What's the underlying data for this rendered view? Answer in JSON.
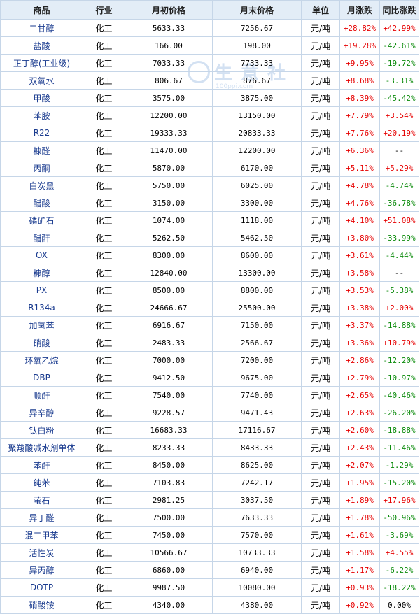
{
  "headers": [
    "商品",
    "行业",
    "月初价格",
    "月末价格",
    "单位",
    "月涨跌",
    "同比涨跌"
  ],
  "watermark": {
    "text": "生意社",
    "url": "100ppi.com"
  },
  "colors": {
    "up": "#e60000",
    "down": "#0a8a0a",
    "header_bg": "#e3edf7",
    "border": "#c6d6e8",
    "name": "#1a3b8f"
  },
  "rows": [
    {
      "name": "二甘醇",
      "industry": "化工",
      "start": "5633.33",
      "end": "7256.67",
      "unit": "元/吨",
      "mom": "+28.82%",
      "yoy": "+42.99%",
      "yoy_dir": "up"
    },
    {
      "name": "盐酸",
      "industry": "化工",
      "start": "166.00",
      "end": "198.00",
      "unit": "元/吨",
      "mom": "+19.28%",
      "yoy": "-42.61%",
      "yoy_dir": "down"
    },
    {
      "name": "正丁醇(工业级)",
      "industry": "化工",
      "start": "7033.33",
      "end": "7733.33",
      "unit": "元/吨",
      "mom": "+9.95%",
      "yoy": "-19.72%",
      "yoy_dir": "down"
    },
    {
      "name": "双氧水",
      "industry": "化工",
      "start": "806.67",
      "end": "876.67",
      "unit": "元/吨",
      "mom": "+8.68%",
      "yoy": "-3.31%",
      "yoy_dir": "down"
    },
    {
      "name": "甲酸",
      "industry": "化工",
      "start": "3575.00",
      "end": "3875.00",
      "unit": "元/吨",
      "mom": "+8.39%",
      "yoy": "-45.42%",
      "yoy_dir": "down"
    },
    {
      "name": "苯胺",
      "industry": "化工",
      "start": "12200.00",
      "end": "13150.00",
      "unit": "元/吨",
      "mom": "+7.79%",
      "yoy": "+3.54%",
      "yoy_dir": "up"
    },
    {
      "name": "R22",
      "industry": "化工",
      "start": "19333.33",
      "end": "20833.33",
      "unit": "元/吨",
      "mom": "+7.76%",
      "yoy": "+20.19%",
      "yoy_dir": "up"
    },
    {
      "name": "糠醛",
      "industry": "化工",
      "start": "11470.00",
      "end": "12200.00",
      "unit": "元/吨",
      "mom": "+6.36%",
      "yoy": "--",
      "yoy_dir": "flat"
    },
    {
      "name": "丙酮",
      "industry": "化工",
      "start": "5870.00",
      "end": "6170.00",
      "unit": "元/吨",
      "mom": "+5.11%",
      "yoy": "+5.29%",
      "yoy_dir": "up"
    },
    {
      "name": "白炭黑",
      "industry": "化工",
      "start": "5750.00",
      "end": "6025.00",
      "unit": "元/吨",
      "mom": "+4.78%",
      "yoy": "-4.74%",
      "yoy_dir": "down"
    },
    {
      "name": "醋酸",
      "industry": "化工",
      "start": "3150.00",
      "end": "3300.00",
      "unit": "元/吨",
      "mom": "+4.76%",
      "yoy": "-36.78%",
      "yoy_dir": "down"
    },
    {
      "name": "磷矿石",
      "industry": "化工",
      "start": "1074.00",
      "end": "1118.00",
      "unit": "元/吨",
      "mom": "+4.10%",
      "yoy": "+51.08%",
      "yoy_dir": "up"
    },
    {
      "name": "醋酐",
      "industry": "化工",
      "start": "5262.50",
      "end": "5462.50",
      "unit": "元/吨",
      "mom": "+3.80%",
      "yoy": "-33.99%",
      "yoy_dir": "down"
    },
    {
      "name": "OX",
      "industry": "化工",
      "start": "8300.00",
      "end": "8600.00",
      "unit": "元/吨",
      "mom": "+3.61%",
      "yoy": "-4.44%",
      "yoy_dir": "down"
    },
    {
      "name": "糠醇",
      "industry": "化工",
      "start": "12840.00",
      "end": "13300.00",
      "unit": "元/吨",
      "mom": "+3.58%",
      "yoy": "--",
      "yoy_dir": "flat"
    },
    {
      "name": "PX",
      "industry": "化工",
      "start": "8500.00",
      "end": "8800.00",
      "unit": "元/吨",
      "mom": "+3.53%",
      "yoy": "-5.38%",
      "yoy_dir": "down"
    },
    {
      "name": "R134a",
      "industry": "化工",
      "start": "24666.67",
      "end": "25500.00",
      "unit": "元/吨",
      "mom": "+3.38%",
      "yoy": "+2.00%",
      "yoy_dir": "up"
    },
    {
      "name": "加氢苯",
      "industry": "化工",
      "start": "6916.67",
      "end": "7150.00",
      "unit": "元/吨",
      "mom": "+3.37%",
      "yoy": "-14.88%",
      "yoy_dir": "down"
    },
    {
      "name": "硝酸",
      "industry": "化工",
      "start": "2483.33",
      "end": "2566.67",
      "unit": "元/吨",
      "mom": "+3.36%",
      "yoy": "+10.79%",
      "yoy_dir": "up"
    },
    {
      "name": "环氧乙烷",
      "industry": "化工",
      "start": "7000.00",
      "end": "7200.00",
      "unit": "元/吨",
      "mom": "+2.86%",
      "yoy": "-12.20%",
      "yoy_dir": "down"
    },
    {
      "name": "DBP",
      "industry": "化工",
      "start": "9412.50",
      "end": "9675.00",
      "unit": "元/吨",
      "mom": "+2.79%",
      "yoy": "-10.97%",
      "yoy_dir": "down"
    },
    {
      "name": "顺酐",
      "industry": "化工",
      "start": "7540.00",
      "end": "7740.00",
      "unit": "元/吨",
      "mom": "+2.65%",
      "yoy": "-40.46%",
      "yoy_dir": "down"
    },
    {
      "name": "异辛醇",
      "industry": "化工",
      "start": "9228.57",
      "end": "9471.43",
      "unit": "元/吨",
      "mom": "+2.63%",
      "yoy": "-26.20%",
      "yoy_dir": "down"
    },
    {
      "name": "钛白粉",
      "industry": "化工",
      "start": "16683.33",
      "end": "17116.67",
      "unit": "元/吨",
      "mom": "+2.60%",
      "yoy": "-18.88%",
      "yoy_dir": "down"
    },
    {
      "name": "聚羧酸减水剂单体",
      "industry": "化工",
      "start": "8233.33",
      "end": "8433.33",
      "unit": "元/吨",
      "mom": "+2.43%",
      "yoy": "-11.46%",
      "yoy_dir": "down"
    },
    {
      "name": "苯酐",
      "industry": "化工",
      "start": "8450.00",
      "end": "8625.00",
      "unit": "元/吨",
      "mom": "+2.07%",
      "yoy": "-1.29%",
      "yoy_dir": "down"
    },
    {
      "name": "纯苯",
      "industry": "化工",
      "start": "7103.83",
      "end": "7242.17",
      "unit": "元/吨",
      "mom": "+1.95%",
      "yoy": "-15.20%",
      "yoy_dir": "down"
    },
    {
      "name": "萤石",
      "industry": "化工",
      "start": "2981.25",
      "end": "3037.50",
      "unit": "元/吨",
      "mom": "+1.89%",
      "yoy": "+17.96%",
      "yoy_dir": "up"
    },
    {
      "name": "异丁醛",
      "industry": "化工",
      "start": "7500.00",
      "end": "7633.33",
      "unit": "元/吨",
      "mom": "+1.78%",
      "yoy": "-50.96%",
      "yoy_dir": "down"
    },
    {
      "name": "混二甲苯",
      "industry": "化工",
      "start": "7450.00",
      "end": "7570.00",
      "unit": "元/吨",
      "mom": "+1.61%",
      "yoy": "-3.69%",
      "yoy_dir": "down"
    },
    {
      "name": "活性炭",
      "industry": "化工",
      "start": "10566.67",
      "end": "10733.33",
      "unit": "元/吨",
      "mom": "+1.58%",
      "yoy": "+4.55%",
      "yoy_dir": "up"
    },
    {
      "name": "异丙醇",
      "industry": "化工",
      "start": "6860.00",
      "end": "6940.00",
      "unit": "元/吨",
      "mom": "+1.17%",
      "yoy": "-6.22%",
      "yoy_dir": "down"
    },
    {
      "name": "DOTP",
      "industry": "化工",
      "start": "9987.50",
      "end": "10080.00",
      "unit": "元/吨",
      "mom": "+0.93%",
      "yoy": "-18.22%",
      "yoy_dir": "down"
    },
    {
      "name": "硝酸铵",
      "industry": "化工",
      "start": "4340.00",
      "end": "4380.00",
      "unit": "元/吨",
      "mom": "+0.92%",
      "yoy": "0.00%",
      "yoy_dir": "flat"
    }
  ]
}
